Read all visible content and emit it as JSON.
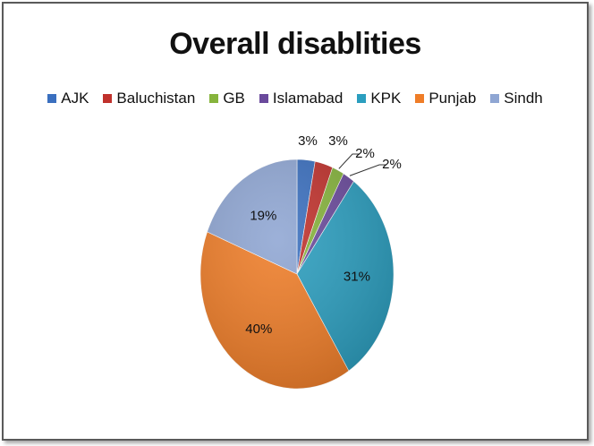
{
  "chart_data": {
    "type": "pie",
    "title": "Overall disablities",
    "legend_position": "top",
    "slices": [
      {
        "label": "AJK",
        "value": 3,
        "display": "3%",
        "color": "#3a6fbf"
      },
      {
        "label": "Baluchistan",
        "value": 3,
        "display": "3%",
        "color": "#c0312c"
      },
      {
        "label": "GB",
        "value": 2,
        "display": "2%",
        "color": "#86b43c"
      },
      {
        "label": "Islamabad",
        "value": 2,
        "display": "2%",
        "color": "#6a4a9c"
      },
      {
        "label": "KPK",
        "value": 31,
        "display": "31%",
        "color": "#2b9ebf"
      },
      {
        "label": "Punjab",
        "value": 40,
        "display": "40%",
        "color": "#ef7d28"
      },
      {
        "label": "Sindh",
        "value": 19,
        "display": "19%",
        "color": "#8fa6d3"
      }
    ]
  }
}
